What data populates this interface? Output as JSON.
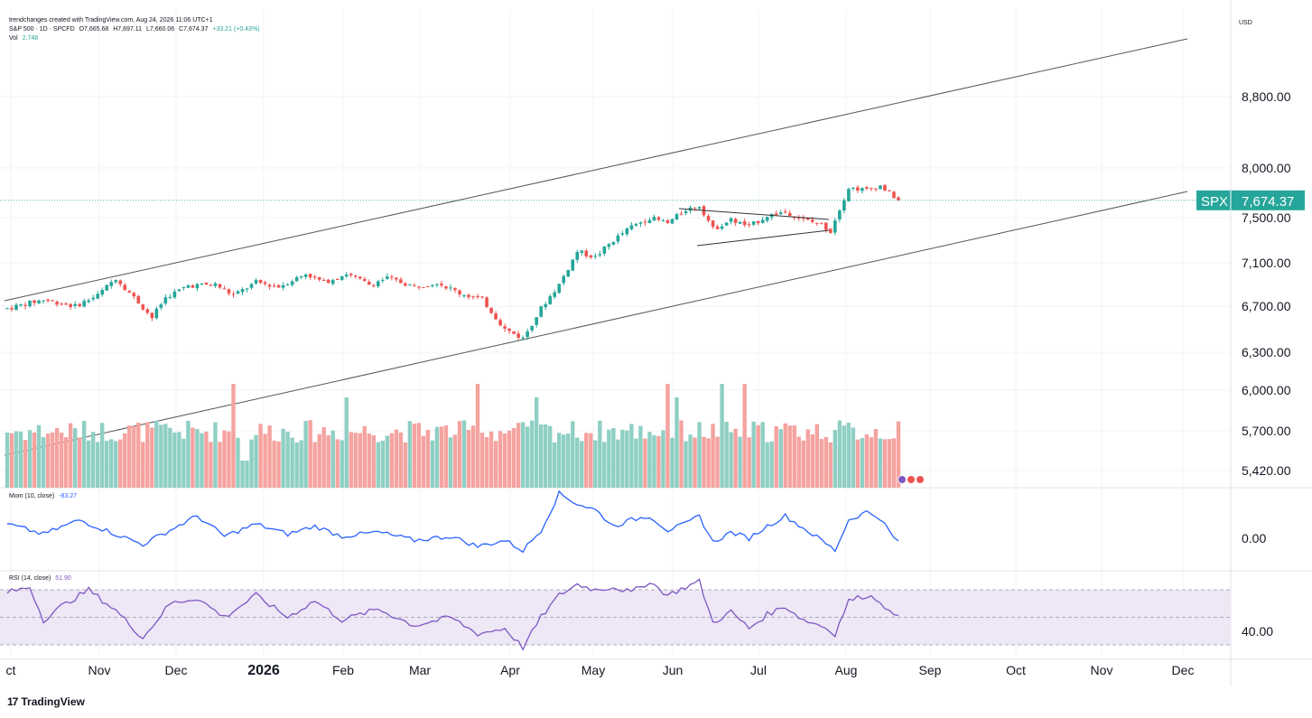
{
  "header": {
    "source": "trendchanges created with TradingView.com, Aug 24, 2026 11:06 UTC+1",
    "symbol": "S&P 500 · 1D · SPCFD",
    "open": "O7,665.68",
    "high": "H7,697.11",
    "low": "L7,660.06",
    "close": "C7,674.37",
    "change": "+33.21 (+0.43%)",
    "vol_label": "Vol",
    "vol_value": "2.748"
  },
  "currency": "USD",
  "brand": "TradingView",
  "colors": {
    "up": "#26a69a",
    "down": "#ef5350",
    "vol_up": "#8fcfc4",
    "vol_down": "#f5a3a0",
    "momentum": "#2962ff",
    "rsi": "#7e57c2",
    "rsi_band": "#ede7f6",
    "badge": "#26a69a",
    "channel": "#555555"
  },
  "chart_data": [
    {
      "type": "candlestick",
      "name": "S&P 500",
      "yticks": [
        "8,800.00",
        "8,000.00",
        "7,500.00",
        "7,100.00",
        "6,700.00",
        "6,300.00",
        "6,000.00",
        "5,700.00",
        "5,420.00"
      ],
      "ytick_values": [
        8800,
        8000,
        7500,
        7100,
        6700,
        6300,
        6000,
        5700,
        5420
      ],
      "xticks": [
        "ct",
        "Nov",
        "Dec",
        "2026",
        "Feb",
        "Mar",
        "Apr",
        "May",
        "Jun",
        "Jul",
        "Aug",
        "Sep",
        "Oct",
        "Nov",
        "Dec"
      ],
      "last_price_label": "SPX",
      "last_price": "7,674.37",
      "keyframes": [
        [
          0,
          6680
        ],
        [
          8,
          6760
        ],
        [
          15,
          6700
        ],
        [
          20,
          6800
        ],
        [
          24,
          6960
        ],
        [
          28,
          6780
        ],
        [
          32,
          6600
        ],
        [
          35,
          6780
        ],
        [
          40,
          6890
        ],
        [
          46,
          6900
        ],
        [
          50,
          6800
        ],
        [
          55,
          6920
        ],
        [
          60,
          6880
        ],
        [
          66,
          7000
        ],
        [
          70,
          6920
        ],
        [
          75,
          7000
        ],
        [
          80,
          6900
        ],
        [
          84,
          6960
        ],
        [
          90,
          6880
        ],
        [
          95,
          6920
        ],
        [
          100,
          6820
        ],
        [
          105,
          6760
        ],
        [
          110,
          6500
        ],
        [
          114,
          6420
        ],
        [
          118,
          6680
        ],
        [
          122,
          6900
        ],
        [
          126,
          7200
        ],
        [
          130,
          7150
        ],
        [
          134,
          7300
        ],
        [
          138,
          7420
        ],
        [
          142,
          7500
        ],
        [
          146,
          7450
        ],
        [
          150,
          7580
        ],
        [
          153,
          7620
        ],
        [
          156,
          7400
        ],
        [
          160,
          7480
        ],
        [
          164,
          7420
        ],
        [
          168,
          7520
        ],
        [
          172,
          7560
        ],
        [
          176,
          7480
        ],
        [
          180,
          7440
        ],
        [
          182,
          7380
        ],
        [
          186,
          7800
        ],
        [
          190,
          7780
        ],
        [
          193,
          7820
        ],
        [
          197,
          7674
        ]
      ]
    },
    {
      "type": "bar",
      "name": "Volume",
      "note": "relative daily volume bars under the price pane"
    },
    {
      "type": "line",
      "name": "Mom",
      "label": "Mom (10, close)",
      "last_value": "-83.27",
      "yticks": [
        "0.00"
      ],
      "keyframes": [
        [
          0,
          0.35
        ],
        [
          8,
          0.1
        ],
        [
          16,
          0.45
        ],
        [
          24,
          0.1
        ],
        [
          30,
          -0.15
        ],
        [
          36,
          0.2
        ],
        [
          42,
          0.55
        ],
        [
          48,
          0.05
        ],
        [
          55,
          0.35
        ],
        [
          62,
          0.1
        ],
        [
          68,
          0.3
        ],
        [
          74,
          0.05
        ],
        [
          82,
          0.15
        ],
        [
          90,
          -0.05
        ],
        [
          98,
          0.05
        ],
        [
          104,
          -0.2
        ],
        [
          110,
          -0.05
        ],
        [
          114,
          -0.3
        ],
        [
          118,
          0.2
        ],
        [
          122,
          1.1
        ],
        [
          126,
          0.85
        ],
        [
          130,
          0.7
        ],
        [
          134,
          0.3
        ],
        [
          138,
          0.45
        ],
        [
          142,
          0.55
        ],
        [
          146,
          0.2
        ],
        [
          150,
          0.35
        ],
        [
          153,
          0.55
        ],
        [
          156,
          -0.1
        ],
        [
          160,
          0.15
        ],
        [
          164,
          0.0
        ],
        [
          168,
          0.3
        ],
        [
          172,
          0.55
        ],
        [
          176,
          0.25
        ],
        [
          180,
          -0.05
        ],
        [
          183,
          -0.3
        ],
        [
          186,
          0.45
        ],
        [
          190,
          0.65
        ],
        [
          193,
          0.5
        ],
        [
          196,
          0.0
        ],
        [
          197,
          -0.08
        ]
      ]
    },
    {
      "type": "line",
      "name": "RSI",
      "label": "RSI (14, close)",
      "last_value": "51.90",
      "yticks": [
        "40.00"
      ],
      "ylim": [
        25,
        75
      ],
      "keyframes": [
        [
          0,
          68
        ],
        [
          5,
          72
        ],
        [
          8,
          48
        ],
        [
          12,
          58
        ],
        [
          18,
          70
        ],
        [
          24,
          55
        ],
        [
          30,
          35
        ],
        [
          36,
          60
        ],
        [
          42,
          64
        ],
        [
          48,
          50
        ],
        [
          55,
          66
        ],
        [
          62,
          50
        ],
        [
          68,
          62
        ],
        [
          74,
          48
        ],
        [
          82,
          56
        ],
        [
          90,
          44
        ],
        [
          98,
          50
        ],
        [
          104,
          38
        ],
        [
          110,
          42
        ],
        [
          114,
          28
        ],
        [
          118,
          50
        ],
        [
          122,
          66
        ],
        [
          126,
          74
        ],
        [
          130,
          70
        ],
        [
          134,
          72
        ],
        [
          138,
          68
        ],
        [
          142,
          76
        ],
        [
          146,
          66
        ],
        [
          150,
          72
        ],
        [
          153,
          76
        ],
        [
          156,
          46
        ],
        [
          160,
          54
        ],
        [
          164,
          42
        ],
        [
          168,
          52
        ],
        [
          172,
          58
        ],
        [
          176,
          48
        ],
        [
          180,
          44
        ],
        [
          183,
          38
        ],
        [
          186,
          62
        ],
        [
          190,
          66
        ],
        [
          193,
          62
        ],
        [
          196,
          50
        ],
        [
          197,
          52
        ]
      ]
    }
  ]
}
